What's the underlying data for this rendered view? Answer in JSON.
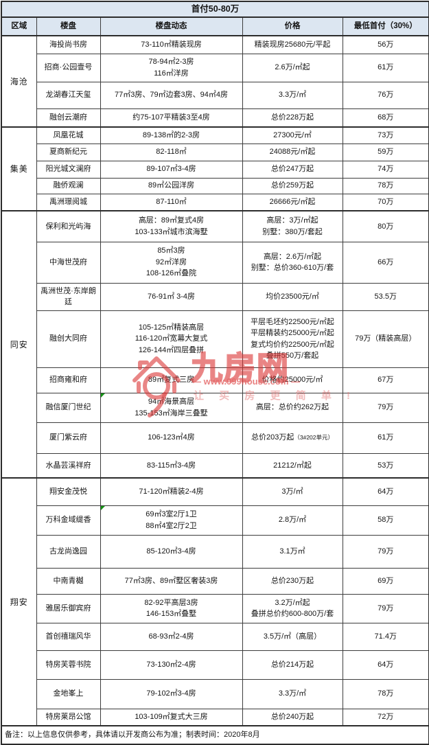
{
  "title": "首付50-80万",
  "columns": [
    "区域",
    "楼盘",
    "楼盘动态",
    "价格",
    "最低首付（30%）"
  ],
  "regions": [
    {
      "name": "海沧",
      "rows": [
        {
          "name": "海投尚书房",
          "dynamic": [
            "73-110㎡精装现房"
          ],
          "price": [
            "精装现房25680元/平起"
          ],
          "down": "56万",
          "h": 26
        },
        {
          "name": "招商·公园壹号",
          "dynamic": [
            "78-94㎡2-3房",
            "116㎡洋房"
          ],
          "price": [
            "2.6万/㎡起"
          ],
          "down": "61万",
          "h": 41
        },
        {
          "name": "龙湖春江天玺",
          "dynamic": [
            "77㎡3房、79㎡边套3房、94㎡4房"
          ],
          "price": [
            "3.3万/㎡"
          ],
          "down": "76万",
          "h": 39
        },
        {
          "name": "融创云潮府",
          "dynamic": [
            "约75-107平精装3至4房"
          ],
          "price": [
            "总价228万起"
          ],
          "down": "68万",
          "h": 27
        }
      ]
    },
    {
      "name": "集美",
      "rows": [
        {
          "name": "凤凰花城",
          "dynamic": [
            "89-138㎡的2-3房"
          ],
          "price": [
            "27300元/㎡"
          ],
          "down": "73万",
          "h": 24
        },
        {
          "name": "夏商新纪元",
          "dynamic": [
            "82-118㎡"
          ],
          "price": [
            "24088元/㎡起"
          ],
          "down": "59万",
          "h": 25
        },
        {
          "name": "阳光城文澜府",
          "dynamic": [
            "89-107㎡3-4房"
          ],
          "price": [
            "总价247万起"
          ],
          "down": "74万",
          "h": 25
        },
        {
          "name": "融侨观澜",
          "dynamic": [
            "89㎡公园洋房"
          ],
          "price": [
            "总价259万起"
          ],
          "down": "78万",
          "h": 23
        },
        {
          "name": "禹洲璟阅城",
          "dynamic": [
            "87-110㎡"
          ],
          "price": [
            "26666元/㎡起"
          ],
          "down": "70万",
          "h": 25
        }
      ]
    },
    {
      "name": "同安",
      "rows": [
        {
          "name": "保利和光屿海",
          "dynamic": [
            "高层：89㎡复式4房",
            "103-133㎡城市滨海墅"
          ],
          "price": [
            "高层：3万/㎡起",
            "别墅：380万/套起"
          ],
          "down": "80万",
          "h": 45
        },
        {
          "name": "中海世茂府",
          "dynamic": [
            "85㎡3房",
            "92㎡洋房",
            "108-126㎡叠院"
          ],
          "price": [
            "高层：2.6万/㎡起",
            "别墅：总价360-610万/套"
          ],
          "down": "66万",
          "h": 60
        },
        {
          "name": "禹洲世茂·东岸朗廷",
          "dynamic": [
            "76-91㎡ 3-4房"
          ],
          "price": [
            "均价23500元/㎡"
          ],
          "down": "53.5万",
          "h": 40
        },
        {
          "name": "融创大同府",
          "dynamic": [
            "105-125㎡精装高层",
            "116-120㎡宽幕大复式",
            "126-144㎡四层叠拼"
          ],
          "price": [
            "平层毛坯约22500元/㎡起",
            "平层精装约25000元/㎡起",
            "复式均价约22500元/㎡起",
            "叠拼550万/套起"
          ],
          "down": "79万（精装高层）",
          "h": 83
        },
        {
          "name": "招商雍和府",
          "dynamic": [
            "89㎡复式三房"
          ],
          "price": [
            "价格约25000元/㎡"
          ],
          "down": "67万",
          "h": 37
        },
        {
          "name": "融信厦门世纪",
          "dynamic": [
            "94㎡海景高层",
            "135-153㎡海岸三叠墅"
          ],
          "price": [
            "高层：总价约262万起"
          ],
          "down": "79万",
          "h": 43,
          "marker": true
        },
        {
          "name": "厦门紫云府",
          "dynamic": [
            "106-123㎡4房"
          ],
          "price": [
            "总价203万起"
          ],
          "price_note": "（3#202单元）",
          "down": "61万",
          "h": 45
        },
        {
          "name": "水晶芸溪祥府",
          "dynamic": [
            "83-115㎡3-4房"
          ],
          "price": [
            "21212/㎡起"
          ],
          "down": "53万",
          "h": 36
        }
      ]
    },
    {
      "name": "翔安",
      "rows": [
        {
          "name": "翔安金茂悦",
          "dynamic": [
            "71-120㎡精装2-4房"
          ],
          "price": [
            "3万/㎡"
          ],
          "down": "64万",
          "h": 40
        },
        {
          "name": "万科金域缇香",
          "dynamic": [
            "69㎡3室2厅1卫",
            "88㎡4室2厅2卫"
          ],
          "price": [
            "2.8万/㎡"
          ],
          "down": "58万",
          "h": 43,
          "marker": true
        },
        {
          "name": "古龙尚逸园",
          "dynamic": [
            "85-120㎡3-4房"
          ],
          "price": [
            "3.1万㎡"
          ],
          "down": "79万",
          "h": 48
        },
        {
          "name": "中南青樾",
          "dynamic": [
            "77㎡3房、89㎡墅区奢装3房"
          ],
          "price": [
            "总价230万起"
          ],
          "down": "69万",
          "h": 38
        },
        {
          "name": "雅居乐御宾府",
          "dynamic": [
            "82-92平高层3房",
            "146-153㎡叠墅"
          ],
          "price": [
            "3.2万/㎡起",
            "叠拼总价约600-800万/套"
          ],
          "down": "79万",
          "h": 42
        },
        {
          "name": "首创禧瑞风华",
          "dynamic": [
            "68-93㎡2-4房"
          ],
          "price": [
            "3.5万/㎡（高层）"
          ],
          "down": "71.4万",
          "h": 40
        },
        {
          "name": "特房芙蓉书院",
          "dynamic": [
            "73-130㎡2-4房"
          ],
          "price": [
            "总价214万起"
          ],
          "down": "64万",
          "h": 42
        },
        {
          "name": "金地峯上",
          "dynamic": [
            "79-102㎡3-4房"
          ],
          "price": [
            "3.3万/㎡"
          ],
          "down": "78万",
          "h": 43
        },
        {
          "name": "特房莱昂公馆",
          "dynamic": [
            "103-109㎡复式大三房"
          ],
          "price": [
            "总价240万起"
          ],
          "down": "72万",
          "h": 25
        }
      ]
    }
  ],
  "footer": "备注：以上信息仅供参考，具体请以开发商公布为准；制表时间：2020年8月",
  "watermark": {
    "brand": "九房网",
    "url": "— www.999house.com —",
    "slogan": "让 买 房 更 简 单 !",
    "color": "#d93636"
  },
  "colors": {
    "header_bg": "#dce6f1",
    "border": "#2b2b2b",
    "marker_green": "#169416"
  }
}
